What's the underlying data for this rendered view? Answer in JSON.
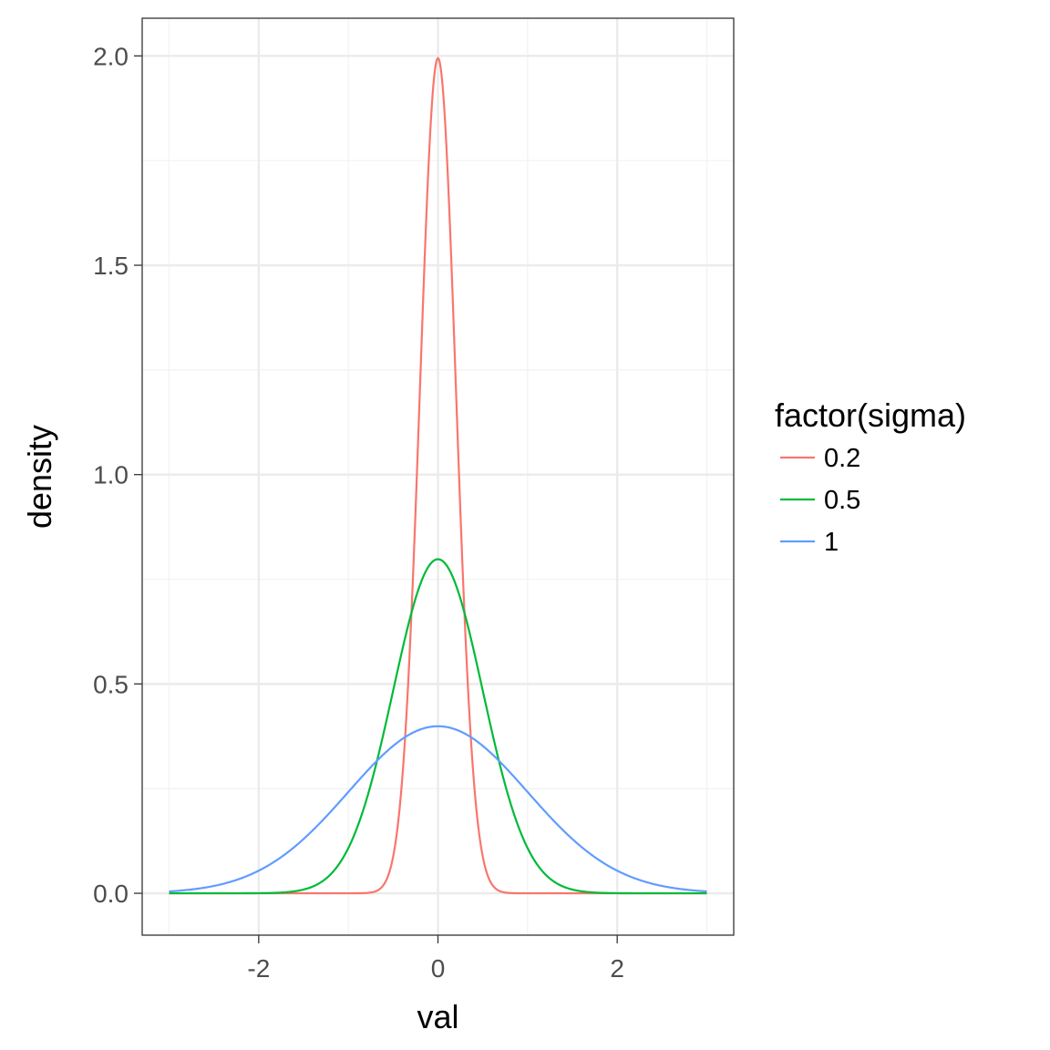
{
  "chart_data": {
    "type": "line",
    "title": "",
    "xlabel": "val",
    "ylabel": "density",
    "xlim": [
      -3.3,
      3.3
    ],
    "ylim": [
      -0.1,
      2.09
    ],
    "x_ticks": [
      -2,
      0,
      2
    ],
    "x_tick_labels": [
      "-2",
      "0",
      "2"
    ],
    "y_ticks": [
      0,
      0.5,
      1,
      1.5,
      2
    ],
    "y_tick_labels": [
      "0.0",
      "0.5",
      "1.0",
      "1.5",
      "2.0"
    ],
    "grid": true,
    "legend": {
      "title": "factor(sigma)",
      "placement": "right"
    },
    "x_range": [
      -3,
      3
    ],
    "series": [
      {
        "name": "0.2",
        "sigma": 0.2,
        "mean": 0,
        "color": "#F8766D"
      },
      {
        "name": "0.5",
        "sigma": 0.5,
        "mean": 0,
        "color": "#00BA38"
      },
      {
        "name": "1",
        "sigma": 1,
        "mean": 0,
        "color": "#619CFF"
      }
    ]
  }
}
